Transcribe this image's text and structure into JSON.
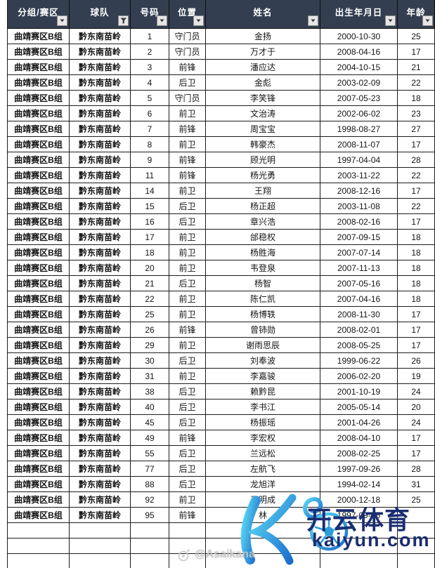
{
  "table": {
    "columns": [
      {
        "key": "group",
        "label": "分组/赛区",
        "filter": "arrow"
      },
      {
        "key": "team",
        "label": "球队",
        "filter": "funnel"
      },
      {
        "key": "number",
        "label": "号码",
        "filter": "arrow"
      },
      {
        "key": "position",
        "label": "位置",
        "filter": "arrow"
      },
      {
        "key": "name",
        "label": "姓名",
        "filter": "arrow"
      },
      {
        "key": "birthdate",
        "label": "出生年月日",
        "filter": "arrow"
      },
      {
        "key": "age",
        "label": "年龄",
        "filter": "arrow"
      }
    ],
    "rows": [
      [
        "曲靖赛区B组",
        "黔东南苗岭",
        "1",
        "守门员",
        "金扬",
        "2000-10-30",
        "25"
      ],
      [
        "曲靖赛区B组",
        "黔东南苗岭",
        "2",
        "守门员",
        "万才于",
        "2008-04-16",
        "17"
      ],
      [
        "曲靖赛区B组",
        "黔东南苗岭",
        "3",
        "前锋",
        "潘应达",
        "2004-10-15",
        "21"
      ],
      [
        "曲靖赛区B组",
        "黔东南苗岭",
        "4",
        "后卫",
        "金彪",
        "2003-02-09",
        "22"
      ],
      [
        "曲靖赛区B组",
        "黔东南苗岭",
        "5",
        "守门员",
        "李笑锋",
        "2007-05-23",
        "18"
      ],
      [
        "曲靖赛区B组",
        "黔东南苗岭",
        "6",
        "前卫",
        "文治涛",
        "2002-06-02",
        "23"
      ],
      [
        "曲靖赛区B组",
        "黔东南苗岭",
        "7",
        "前锋",
        "周宝宝",
        "1998-08-27",
        "27"
      ],
      [
        "曲靖赛区B组",
        "黔东南苗岭",
        "8",
        "前卫",
        "韩豪杰",
        "2008-11-07",
        "17"
      ],
      [
        "曲靖赛区B组",
        "黔东南苗岭",
        "9",
        "前锋",
        "顾光明",
        "1997-04-04",
        "28"
      ],
      [
        "曲靖赛区B组",
        "黔东南苗岭",
        "11",
        "前锋",
        "杨光勇",
        "2003-11-22",
        "22"
      ],
      [
        "曲靖赛区B组",
        "黔东南苗岭",
        "14",
        "前卫",
        "王翔",
        "2008-12-16",
        "17"
      ],
      [
        "曲靖赛区B组",
        "黔东南苗岭",
        "15",
        "后卫",
        "杨正超",
        "2003-11-08",
        "22"
      ],
      [
        "曲靖赛区B组",
        "黔东南苗岭",
        "16",
        "后卫",
        "章兴浩",
        "2008-02-16",
        "17"
      ],
      [
        "曲靖赛区B组",
        "黔东南苗岭",
        "17",
        "前卫",
        "邰稳权",
        "2007-09-15",
        "18"
      ],
      [
        "曲靖赛区B组",
        "黔东南苗岭",
        "18",
        "前卫",
        "杨胜海",
        "2007-07-14",
        "18"
      ],
      [
        "曲靖赛区B组",
        "黔东南苗岭",
        "20",
        "前卫",
        "韦登泉",
        "2007-11-13",
        "18"
      ],
      [
        "曲靖赛区B组",
        "黔东南苗岭",
        "21",
        "后卫",
        "杨智",
        "2007-05-16",
        "18"
      ],
      [
        "曲靖赛区B组",
        "黔东南苗岭",
        "22",
        "前卫",
        "陈仁凯",
        "2007-04-16",
        "18"
      ],
      [
        "曲靖赛区B组",
        "黔东南苗岭",
        "25",
        "前卫",
        "杨博轶",
        "2008-11-30",
        "17"
      ],
      [
        "曲靖赛区B组",
        "黔东南苗岭",
        "26",
        "前锋",
        "曾铈勋",
        "2008-02-01",
        "17"
      ],
      [
        "曲靖赛区B组",
        "黔东南苗岭",
        "29",
        "前卫",
        "谢雨思辰",
        "2008-05-25",
        "17"
      ],
      [
        "曲靖赛区B组",
        "黔东南苗岭",
        "30",
        "后卫",
        "刘奉波",
        "1999-06-22",
        "26"
      ],
      [
        "曲靖赛区B组",
        "黔东南苗岭",
        "31",
        "前卫",
        "李嘉骏",
        "2006-02-20",
        "19"
      ],
      [
        "曲靖赛区B组",
        "黔东南苗岭",
        "38",
        "后卫",
        "赖黔昆",
        "2001-10-19",
        "24"
      ],
      [
        "曲靖赛区B组",
        "黔东南苗岭",
        "40",
        "后卫",
        "李书江",
        "2005-05-14",
        "20"
      ],
      [
        "曲靖赛区B组",
        "黔东南苗岭",
        "45",
        "后卫",
        "杨振瑶",
        "2001-04-26",
        "24"
      ],
      [
        "曲靖赛区B组",
        "黔东南苗岭",
        "49",
        "前锋",
        "李宏权",
        "2008-04-10",
        "17"
      ],
      [
        "曲靖赛区B组",
        "黔东南苗岭",
        "55",
        "后卫",
        "兰远松",
        "2008-02-25",
        "17"
      ],
      [
        "曲靖赛区B组",
        "黔东南苗岭",
        "77",
        "后卫",
        "左航飞",
        "1997-09-26",
        "28"
      ],
      [
        "曲靖赛区B组",
        "黔东南苗岭",
        "88",
        "后卫",
        "龙旭洋",
        "1994-02-14",
        "31"
      ],
      [
        "曲靖赛区B组",
        "黔东南苗岭",
        "92",
        "前卫",
        "王明成",
        "2000-12-18",
        "25"
      ],
      [
        "曲靖赛区B组",
        "黔东南苗岭",
        "95",
        "前锋",
        "林",
        "1997-09-05",
        ""
      ]
    ],
    "empty_row_count": 3
  },
  "watermarks": {
    "kaiyun": {
      "logo_letter": "K",
      "brand_cn": "开云体育",
      "domain": "kaiyun.com"
    },
    "credit": "@Asaikana"
  },
  "colors": {
    "header_bg": "#333F50",
    "header_text": "#FFFFFF",
    "grid_border": "#1C1C1C",
    "brand_navy": "#1B2D71",
    "logo_blue_light": "#5AD8F4",
    "logo_blue_dark": "#1A6CCC"
  }
}
